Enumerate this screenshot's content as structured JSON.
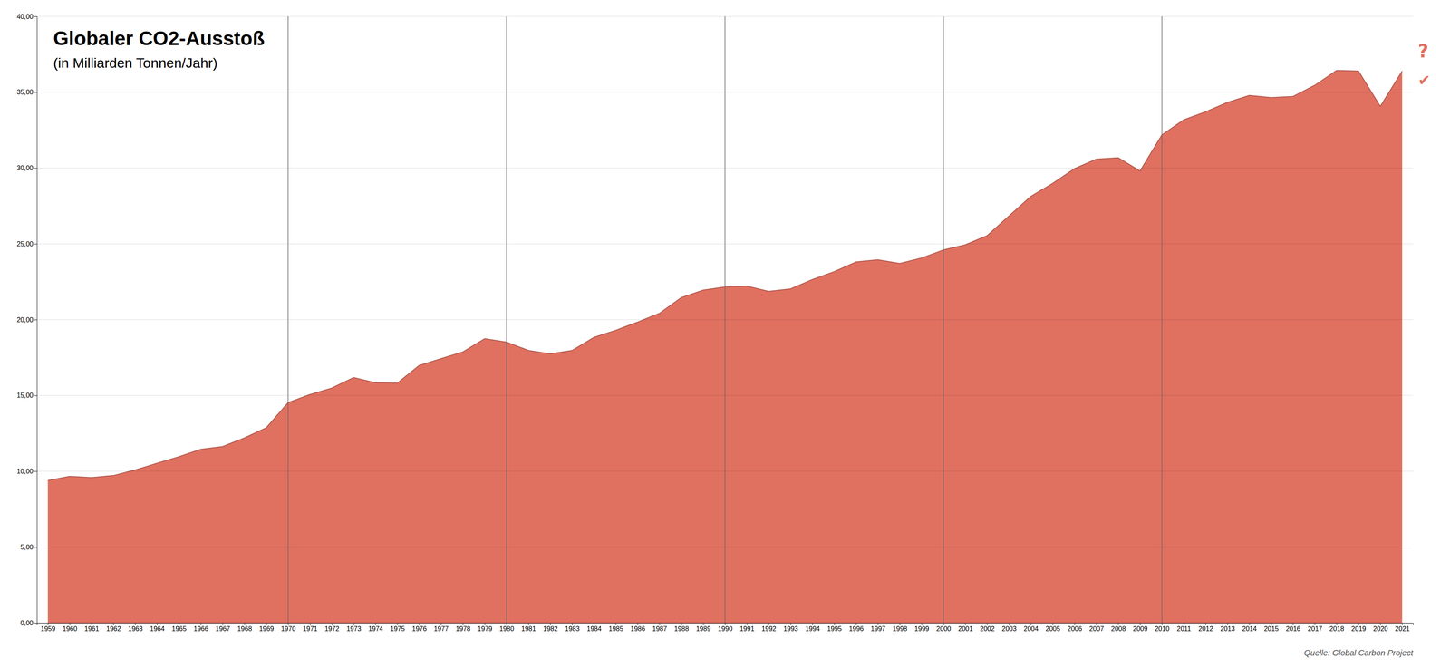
{
  "chart_data": {
    "type": "area",
    "title": "Globaler CO2-Ausstoß",
    "subtitle": "(in Milliarden Tonnen/Jahr)",
    "source": "Quelle: Global Carbon Project",
    "annotations": [
      "?",
      "✔"
    ],
    "x": [
      1959,
      1960,
      1961,
      1962,
      1963,
      1964,
      1965,
      1966,
      1967,
      1968,
      1969,
      1970,
      1971,
      1972,
      1973,
      1974,
      1975,
      1976,
      1977,
      1978,
      1979,
      1980,
      1981,
      1982,
      1983,
      1984,
      1985,
      1986,
      1987,
      1988,
      1989,
      1990,
      1991,
      1992,
      1993,
      1994,
      1995,
      1996,
      1997,
      1998,
      1999,
      2000,
      2001,
      2002,
      2003,
      2004,
      2005,
      2006,
      2007,
      2008,
      2009,
      2010,
      2011,
      2012,
      2013,
      2014,
      2015,
      2016,
      2017,
      2018,
      2019,
      2020,
      2021
    ],
    "values": [
      9.39,
      9.67,
      9.59,
      9.72,
      10.09,
      10.53,
      10.96,
      11.45,
      11.63,
      12.2,
      12.87,
      14.53,
      15.06,
      15.49,
      16.18,
      15.84,
      15.82,
      16.98,
      17.43,
      17.87,
      18.75,
      18.52,
      17.97,
      17.75,
      17.97,
      18.83,
      19.3,
      19.84,
      20.42,
      21.46,
      21.95,
      22.16,
      22.21,
      21.87,
      22.03,
      22.65,
      23.17,
      23.81,
      23.95,
      23.71,
      24.07,
      24.6,
      24.94,
      25.54,
      26.84,
      28.13,
      28.99,
      29.96,
      30.59,
      30.68,
      29.81,
      32.19,
      33.18,
      33.71,
      34.33,
      34.79,
      34.65,
      34.72,
      35.46,
      36.44,
      36.4,
      34.07,
      36.4
    ],
    "color": "#e07060",
    "vertical_lines": [
      1970,
      1980,
      1990,
      2000,
      2010
    ],
    "xlim": [
      1958.5,
      2021.5
    ],
    "xticks": [
      1959,
      1960,
      1961,
      1962,
      1963,
      1964,
      1965,
      1966,
      1967,
      1968,
      1969,
      1970,
      1971,
      1972,
      1973,
      1974,
      1975,
      1976,
      1977,
      1978,
      1979,
      1980,
      1981,
      1982,
      1983,
      1984,
      1985,
      1986,
      1987,
      1988,
      1989,
      1990,
      1991,
      1992,
      1993,
      1994,
      1995,
      1996,
      1997,
      1998,
      1999,
      2000,
      2001,
      2002,
      2003,
      2004,
      2005,
      2006,
      2007,
      2008,
      2009,
      2010,
      2011,
      2012,
      2013,
      2014,
      2015,
      2016,
      2017,
      2018,
      2019,
      2020,
      2021
    ],
    "ylim": [
      0,
      40
    ],
    "yticks": [
      {
        "value": 0,
        "label": "0,00"
      },
      {
        "value": 5,
        "label": "5,00"
      },
      {
        "value": 10,
        "label": "10,00"
      },
      {
        "value": 15,
        "label": "15,00"
      },
      {
        "value": 20,
        "label": "20,00"
      },
      {
        "value": 25,
        "label": "25,00"
      },
      {
        "value": 30,
        "label": "30,00"
      },
      {
        "value": 35,
        "label": "35,00"
      },
      {
        "value": 40,
        "label": "40,00"
      }
    ],
    "grid": true
  }
}
